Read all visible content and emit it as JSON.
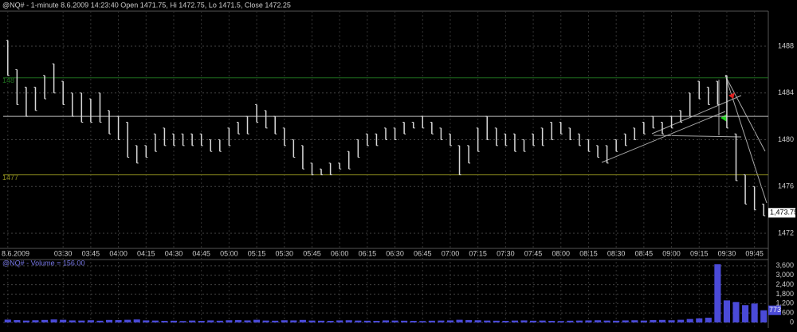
{
  "chart_data": [
    {
      "type": "ohlc",
      "title": "@NQ# - 1-minute 8.6.2009 14:23:40 Open 1471.75, Hi 1472.75, Lo 1471.5, Close 1472.25",
      "categories": [
        "8.6.2009",
        null,
        null,
        null,
        null,
        null,
        "03:30",
        null,
        null,
        "03:45",
        null,
        null,
        "04:00",
        null,
        null,
        "04:15",
        null,
        null,
        "04:30",
        null,
        null,
        "04:45",
        null,
        null,
        "05:00",
        null,
        null,
        "05:15",
        null,
        null,
        "05:30",
        null,
        null,
        "05:45",
        null,
        null,
        "06:00",
        null,
        null,
        "06:15",
        null,
        null,
        "06:30",
        null,
        null,
        "06:45",
        null,
        null,
        "07:00",
        null,
        null,
        "07:15",
        null,
        null,
        "07:30",
        null,
        null,
        "07:45",
        null,
        null,
        "08:00",
        null,
        null,
        "08:15",
        null,
        null,
        "08:30",
        null,
        null,
        "08:45",
        null,
        null,
        "09:00",
        null,
        null,
        "09:15",
        null,
        null,
        "09:30",
        null,
        null,
        "09:45",
        null
      ],
      "high": [
        1488.5,
        1486,
        1484.5,
        1484.5,
        1485.5,
        1486.5,
        1485,
        1484,
        1484,
        1483.5,
        1484,
        1482.5,
        1482,
        1481.5,
        1479.5,
        1479.5,
        1480.5,
        1481,
        1480.5,
        1480.5,
        1480.5,
        1480.5,
        1480,
        1480,
        1481,
        1481.5,
        1482,
        1483,
        1482.5,
        1482,
        1481,
        1480,
        1479.5,
        1478,
        1477.5,
        1478,
        1478,
        1479,
        1480,
        1480.5,
        1480.5,
        1481,
        1481,
        1481.5,
        1481.5,
        1482,
        1481.5,
        1481,
        1480.5,
        1479.5,
        1479.5,
        1481,
        1482,
        1481,
        1480.5,
        1480.5,
        1480,
        1480.5,
        1481,
        1481.5,
        1481.5,
        1481,
        1480.5,
        1480,
        1479.5,
        1479.5,
        1480,
        1480.5,
        1481,
        1481.5,
        1482,
        1481.5,
        1482,
        1482.5,
        1484,
        1485,
        1484.5,
        1485,
        1485.5,
        1480.5,
        1477,
        1476,
        1474.5
      ],
      "low": [
        1485.5,
        1483,
        1482,
        1482.5,
        1483.5,
        1484,
        1483,
        1482,
        1481.5,
        1481.5,
        1481.5,
        1480.5,
        1480,
        1478.5,
        1478,
        1478.5,
        1479,
        1479.5,
        1479.5,
        1479.5,
        1479.5,
        1479.5,
        1479,
        1479,
        1479.5,
        1480.5,
        1480.5,
        1481.5,
        1481,
        1480.5,
        1479.5,
        1478.5,
        1477.5,
        1477,
        1477,
        1477,
        1477.5,
        1477.5,
        1478.5,
        1479.5,
        1479.5,
        1480,
        1480,
        1480.5,
        1481,
        1481,
        1480.5,
        1480,
        1479.5,
        1477,
        1478,
        1479,
        1480,
        1479.5,
        1479.5,
        1479,
        1479,
        1479.5,
        1479.5,
        1480,
        1480.5,
        1480,
        1479.5,
        1479,
        1478.5,
        1478,
        1479,
        1479.5,
        1480,
        1480.5,
        1481,
        1480.5,
        1481,
        1481.5,
        1482,
        1483.5,
        1483,
        1483,
        1481,
        1476.5,
        1474.5,
        1474,
        1473.5
      ],
      "color": "#d8d8d8",
      "ylim": [
        1471.25,
        1491
      ],
      "yticks": [
        1472,
        1476,
        1480,
        1484,
        1488
      ],
      "grid": true,
      "reference_lines": [
        {
          "value": 1482,
          "color": "#bdbdbd"
        },
        {
          "value": 1485.3,
          "color": "#1f6e1f",
          "label": "148"
        },
        {
          "value": 1477,
          "color": "#8c8c1e",
          "label": "1477"
        }
      ],
      "last_price": {
        "value": 1473.75,
        "label": "1,473.75"
      }
    },
    {
      "type": "bar",
      "title": "@NQ# - Volume = 156.00",
      "values": [
        180,
        150,
        120,
        140,
        160,
        190,
        170,
        130,
        120,
        140,
        110,
        160,
        150,
        170,
        190,
        130,
        120,
        100,
        110,
        90,
        120,
        100,
        130,
        110,
        140,
        150,
        130,
        170,
        120,
        110,
        140,
        130,
        160,
        120,
        110,
        100,
        130,
        140,
        120,
        110,
        100,
        130,
        120,
        110,
        100,
        90,
        110,
        120,
        130,
        170,
        150,
        140,
        120,
        110,
        100,
        120,
        130,
        110,
        120,
        100,
        90,
        110,
        120,
        130,
        140,
        120,
        110,
        130,
        140,
        120,
        150,
        160,
        140,
        170,
        220,
        260,
        300,
        3700,
        1400,
        1300,
        1100,
        1200,
        773
      ],
      "color": "#4a4ad8",
      "ylim": [
        0,
        4200
      ],
      "yticks": [
        0,
        {
          "value": 600,
          "label": "600"
        },
        {
          "value": 1200,
          "label": "1,200"
        },
        {
          "value": 1800,
          "label": "1,800"
        },
        {
          "value": 2400,
          "label": "2,400"
        },
        {
          "value": 3000,
          "label": "3,000"
        },
        {
          "value": 3600,
          "label": "3,600"
        }
      ],
      "grid": true
    }
  ]
}
